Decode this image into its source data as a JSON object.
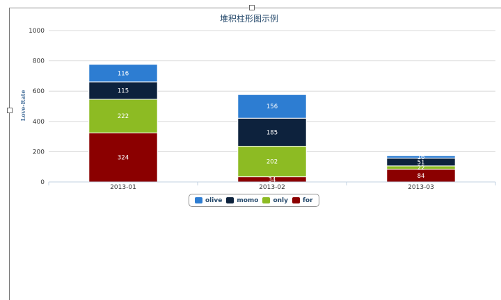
{
  "chart_data": {
    "type": "bar",
    "stacked": true,
    "title": "堆积柱形图示例",
    "ylabel": "Love-Rate",
    "xlabel": "",
    "ylim": [
      0,
      1000
    ],
    "yticks": [
      0,
      200,
      400,
      600,
      800,
      1000
    ],
    "categories": [
      "2013-01",
      "2013-02",
      "2013-03"
    ],
    "series": [
      {
        "name": "for",
        "color": "#8b0000",
        "values": [
          324,
          34,
          84
        ]
      },
      {
        "name": "only",
        "color": "#8dbb23",
        "values": [
          222,
          202,
          22
        ]
      },
      {
        "name": "momo",
        "color": "#0d223d",
        "values": [
          115,
          185,
          51
        ]
      },
      {
        "name": "olive",
        "color": "#2d7dd2",
        "values": [
          116,
          156,
          16
        ]
      }
    ],
    "legend": {
      "position": "bottom-center",
      "order": [
        "olive",
        "momo",
        "only",
        "for"
      ]
    },
    "grid": true
  }
}
